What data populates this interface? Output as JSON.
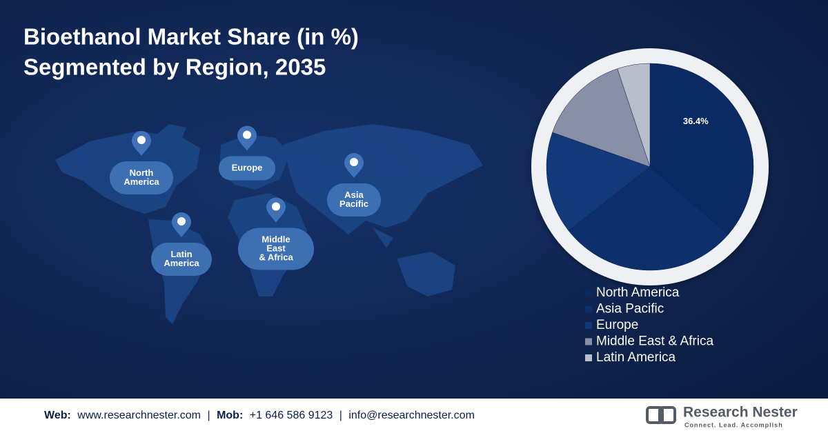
{
  "chart_data": {
    "type": "pie",
    "title_lines": [
      "Bioethanol Market Share (in %)",
      "Segmented by Region, 2035"
    ],
    "categories": [
      "North America",
      "Asia Pacific",
      "Europe",
      "Middle East & Africa",
      "Latin America"
    ],
    "values": [
      36.4,
      28,
      16,
      14.5,
      5.1
    ],
    "value_labels": [
      "36.4%",
      null,
      null,
      null,
      null
    ],
    "colors": [
      "#0b2a64",
      "#0d2f6c",
      "#123a7a",
      "#8790a6",
      "#b9becb"
    ]
  },
  "map": {
    "regions": [
      {
        "lines": [
          "North",
          "America"
        ]
      },
      {
        "lines": [
          "Europe"
        ]
      },
      {
        "lines": [
          "Asia",
          "Pacific"
        ]
      },
      {
        "lines": [
          "Latin",
          "America"
        ]
      },
      {
        "lines": [
          "Middle",
          "East",
          "& Africa"
        ]
      }
    ]
  },
  "footer": {
    "web_label": "Web:",
    "web": "www.researchnester.com",
    "sep1": "|",
    "mob_label": "Mob:",
    "mob": "+1 646 586 9123",
    "sep2": "|",
    "email": "info@researchnester.com",
    "brand": "Research Nester",
    "tagline": "Connect. Lead. Accomplish"
  }
}
